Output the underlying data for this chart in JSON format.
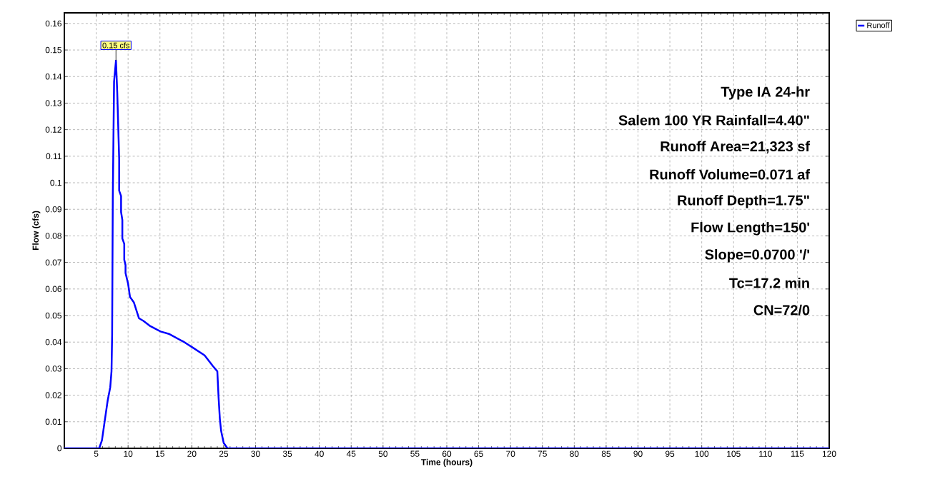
{
  "chart_data": {
    "type": "line",
    "xlabel": "Time  (hours)",
    "ylabel": "Flow  (cfs)",
    "xlim": [
      0,
      120
    ],
    "ylim": [
      0,
      0.164
    ],
    "xticks": [
      5,
      10,
      15,
      20,
      25,
      30,
      35,
      40,
      45,
      50,
      55,
      60,
      65,
      70,
      75,
      80,
      85,
      90,
      95,
      100,
      105,
      110,
      115,
      120
    ],
    "yticks": [
      0,
      0.01,
      0.02,
      0.03,
      0.04,
      0.05,
      0.06,
      0.07,
      0.08,
      0.09,
      0.1,
      0.11,
      0.12,
      0.13,
      0.14,
      0.15,
      0.16
    ],
    "grid": true,
    "legend": "top right",
    "marker": "none",
    "line_style": "solid",
    "series": [
      {
        "name": "Runoff",
        "color": "#0000ff",
        "x": [
          0,
          5.46,
          5.9,
          6.3,
          6.8,
          7.2,
          7.4,
          7.5,
          7.6,
          7.8,
          8.1,
          8.3,
          8.6,
          8.6,
          8.9,
          8.9,
          9.1,
          9.1,
          9.4,
          9.4,
          9.6,
          9.6,
          10.0,
          10.3,
          10.9,
          11.7,
          12.4,
          13.5,
          15.1,
          16.5,
          18.8,
          20.1,
          22.0,
          23.3,
          24.0,
          24.2,
          24.4,
          24.6,
          25.0,
          25.6,
          120
        ],
        "values": [
          0,
          0,
          0.003,
          0.0097,
          0.018,
          0.023,
          0.029,
          0.043,
          0.094,
          0.138,
          0.146,
          0.134,
          0.109,
          0.097,
          0.095,
          0.089,
          0.086,
          0.079,
          0.077,
          0.071,
          0.069,
          0.066,
          0.062,
          0.057,
          0.055,
          0.049,
          0.048,
          0.046,
          0.044,
          0.043,
          0.04,
          0.038,
          0.035,
          0.031,
          0.029,
          0.019,
          0.011,
          0.0065,
          0.002,
          0,
          0
        ]
      }
    ],
    "annotations": [
      {
        "text": "0.15 cfs",
        "x": 8.1,
        "y": 0.146
      },
      "Type IA 24-hr",
      "Salem 100 YR Rainfall=4.40\"",
      "Runoff Area=21,323 sf",
      "Runoff Volume=0.071 af",
      "Runoff Depth=1.75\"",
      "Flow Length=150'",
      "Slope=0.0700 '/'",
      "Tc=17.2 min",
      "CN=72/0"
    ]
  }
}
